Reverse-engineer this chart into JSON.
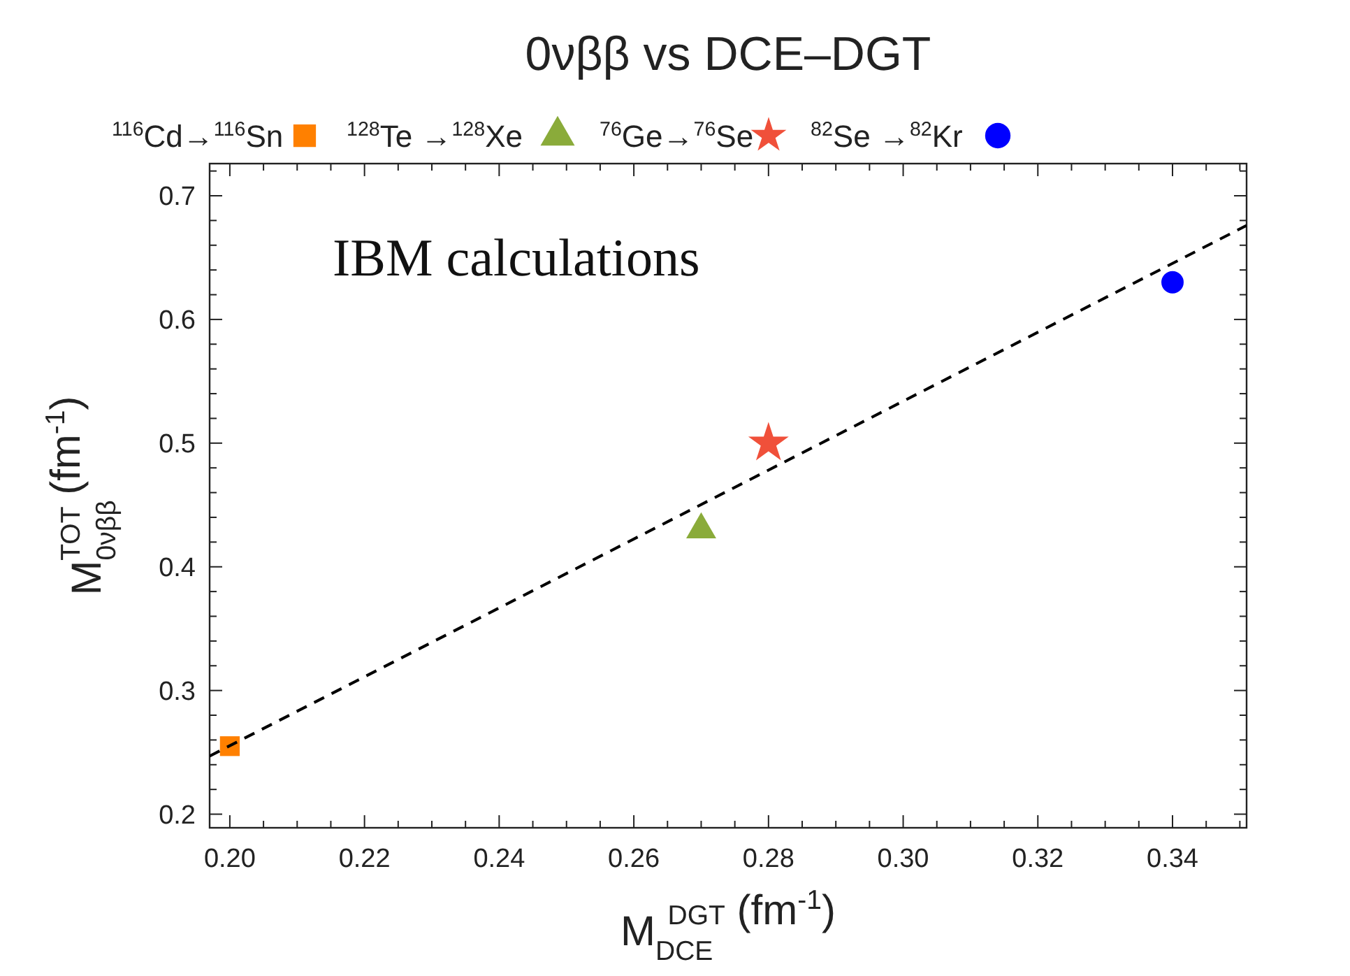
{
  "chart_data": {
    "type": "scatter",
    "title": "0νββ  vs DCE–DGT",
    "xlabel": "M$_{DCE}$$^{DGT}$  (fm$^{-1}$)",
    "ylabel": "M$_{0νββ}$$^{TOT}$  (fm$^{-1}$)",
    "annotations": [
      "IBM calculations"
    ],
    "legend": "top",
    "series": [
      {
        "name": "$^{116}$Cd→$^{116}$Sn",
        "color": "#ff8000",
        "marker": "square",
        "x": [
          0.2
        ],
        "values": [
          0.255
        ]
      },
      {
        "name": "$^{128}$Te →$^{128}$Xe",
        "color": "#8aab3a",
        "marker": "triangle",
        "x": [
          0.27
        ],
        "values": [
          0.43
        ]
      },
      {
        "name": "$^{76}$Ge→$^{76}$Se",
        "color": "#f0503a",
        "marker": "star",
        "x": [
          0.28
        ],
        "values": [
          0.5
        ]
      },
      {
        "name": "$^{82}$Se →$^{82}$Kr",
        "color": "#0000ff",
        "marker": "circle",
        "x": [
          0.34
        ],
        "values": [
          0.63
        ]
      },
      {
        "type": "line",
        "color": "#000000",
        "line_style": "dashed",
        "marker": "none",
        "x": [
          0.197,
          0.351
        ],
        "values": [
          0.247,
          0.676
        ]
      }
    ],
    "xlim": [
      0.197,
      0.351
    ],
    "ylim": [
      0.189,
      0.726
    ],
    "xticks": [
      {
        "value": 0.2,
        "label": "0.20"
      },
      {
        "value": 0.205,
        "label": null
      },
      {
        "value": 0.21,
        "label": null
      },
      {
        "value": 0.215,
        "label": null
      },
      {
        "value": 0.22,
        "label": "0.22"
      },
      {
        "value": 0.225,
        "label": null
      },
      {
        "value": 0.23,
        "label": null
      },
      {
        "value": 0.235,
        "label": null
      },
      {
        "value": 0.24,
        "label": "0.24"
      },
      {
        "value": 0.245,
        "label": null
      },
      {
        "value": 0.25,
        "label": null
      },
      {
        "value": 0.255,
        "label": null
      },
      {
        "value": 0.26,
        "label": "0.26"
      },
      {
        "value": 0.265,
        "label": null
      },
      {
        "value": 0.27,
        "label": null
      },
      {
        "value": 0.275,
        "label": null
      },
      {
        "value": 0.28,
        "label": "0.28"
      },
      {
        "value": 0.285,
        "label": null
      },
      {
        "value": 0.29,
        "label": null
      },
      {
        "value": 0.295,
        "label": null
      },
      {
        "value": 0.3,
        "label": "0.30"
      },
      {
        "value": 0.305,
        "label": null
      },
      {
        "value": 0.31,
        "label": null
      },
      {
        "value": 0.315,
        "label": null
      },
      {
        "value": 0.32,
        "label": "0.32"
      },
      {
        "value": 0.325,
        "label": null
      },
      {
        "value": 0.33,
        "label": null
      },
      {
        "value": 0.335,
        "label": null
      },
      {
        "value": 0.34,
        "label": "0.34"
      },
      {
        "value": 0.345,
        "label": null
      },
      {
        "value": 0.35,
        "label": null
      }
    ],
    "yticks": [
      0.2,
      {
        "value": 0.22,
        "label": null
      },
      {
        "value": 0.24,
        "label": null
      },
      {
        "value": 0.26,
        "label": null
      },
      {
        "value": 0.28,
        "label": null
      },
      0.3,
      {
        "value": 0.32,
        "label": null
      },
      {
        "value": 0.34,
        "label": null
      },
      {
        "value": 0.36,
        "label": null
      },
      {
        "value": 0.38,
        "label": null
      },
      0.4,
      {
        "value": 0.42,
        "label": null
      },
      {
        "value": 0.44,
        "label": null
      },
      {
        "value": 0.46,
        "label": null
      },
      {
        "value": 0.48,
        "label": null
      },
      0.5,
      {
        "value": 0.52,
        "label": null
      },
      {
        "value": 0.54,
        "label": null
      },
      {
        "value": 0.56,
        "label": null
      },
      {
        "value": 0.58,
        "label": null
      },
      0.6,
      {
        "value": 0.62,
        "label": null
      },
      {
        "value": 0.64,
        "label": null
      },
      {
        "value": 0.66,
        "label": null
      },
      {
        "value": 0.68,
        "label": null
      },
      0.7,
      {
        "value": 0.72,
        "label": null
      }
    ],
    "grid": false
  }
}
